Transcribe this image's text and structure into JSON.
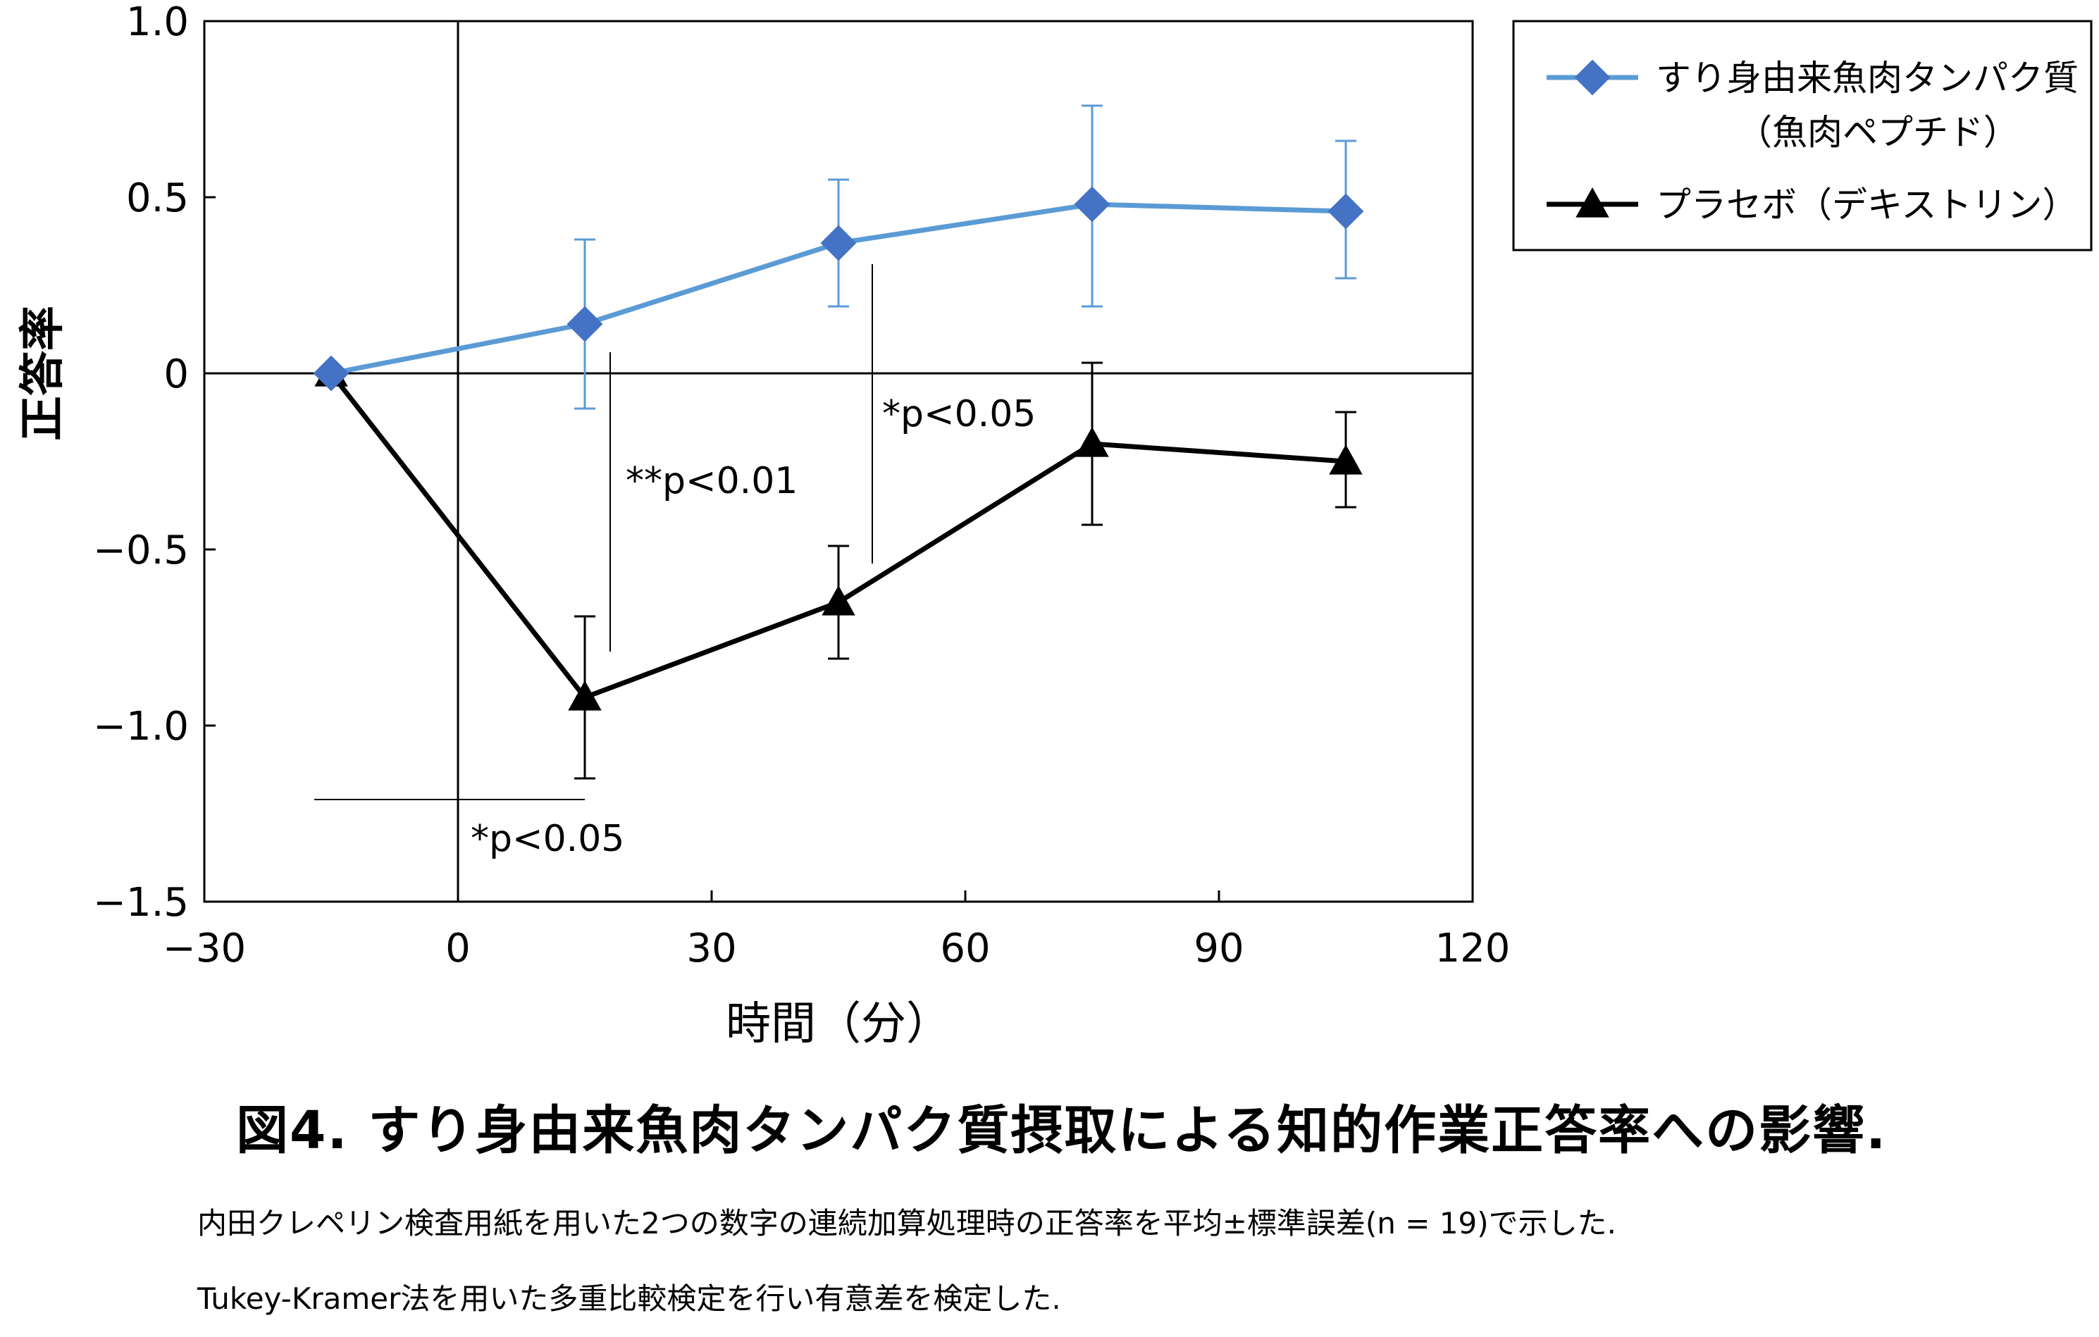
{
  "chart_data": {
    "type": "line",
    "xlabel": "時間（分）",
    "ylabel": "正答率",
    "xlim": [
      -30,
      120
    ],
    "ylim": [
      -1.5,
      1.0
    ],
    "xticks": [
      "−30",
      "0",
      "30",
      "60",
      "90",
      "120"
    ],
    "yticks": [
      "1.0",
      "0.5",
      "0",
      "−0.5",
      "−1.0",
      "−1.5"
    ],
    "grid": false,
    "legend_position": "top-right, outside plot",
    "x": [
      -15,
      15,
      45,
      75,
      105
    ],
    "series": [
      {
        "name": "すり身由来魚肉タンパク質",
        "name_line2": "（魚肉ペプチド）",
        "color": "#5b9bd5",
        "marker": "diamond",
        "values": [
          0.0,
          0.14,
          0.37,
          0.48,
          0.46
        ],
        "error_upper": [
          0.0,
          0.38,
          0.55,
          0.76,
          0.66
        ],
        "error_lower": [
          0.0,
          -0.1,
          0.19,
          0.19,
          0.27
        ]
      },
      {
        "name": "プラセボ（デキストリン）",
        "color": "#000000",
        "marker": "triangle",
        "values": [
          0.0,
          -0.92,
          -0.65,
          -0.2,
          -0.25
        ],
        "error_upper": [
          0.0,
          -0.69,
          -0.49,
          0.03,
          -0.11
        ],
        "error_lower": [
          0.0,
          -1.15,
          -0.81,
          -0.43,
          -0.38
        ]
      }
    ],
    "annotations": [
      {
        "text": "**p<0.01",
        "x": 15
      },
      {
        "text": "*p<0.05",
        "x": 45
      },
      {
        "text": "*p<0.05",
        "x": 0
      }
    ]
  },
  "caption": {
    "title": "図4. すり身由来魚肉タンパク質摂取による知的作業正答率への影響.",
    "line1": "内田クレペリン検査用紙を用いた2つの数字の連続加算処理時の正答率を平均±標準誤差(n = 19)で示した.",
    "line2": "Tukey-Kramer法を用いた多重比較検定を行い有意差を検定した."
  }
}
